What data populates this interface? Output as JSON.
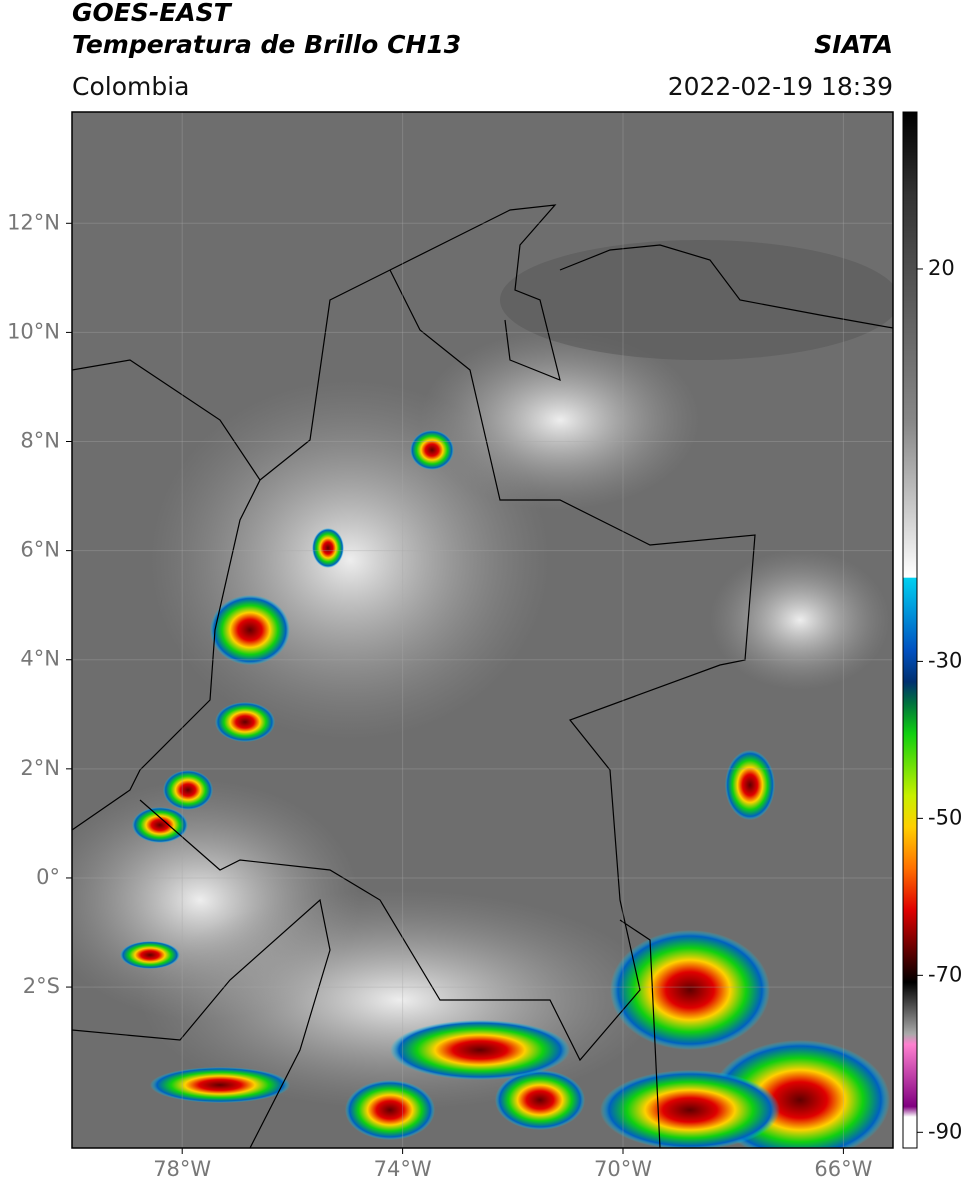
{
  "header": {
    "title": "GOES-EAST",
    "subtitle": "Temperatura de Brillo CH13",
    "source": "SIATA",
    "region": "Colombia",
    "datetime": "2022-02-19 18:39"
  },
  "map": {
    "xlim": [
      -80,
      -65.1
    ],
    "ylim": [
      -4.95,
      14.04
    ],
    "xticks": [
      {
        "value": -78,
        "label": "78°W"
      },
      {
        "value": -74,
        "label": "74°W"
      },
      {
        "value": -70,
        "label": "70°W"
      },
      {
        "value": -66,
        "label": "66°W"
      }
    ],
    "yticks": [
      {
        "value": 12,
        "label": "12°N"
      },
      {
        "value": 10,
        "label": "10°N"
      },
      {
        "value": 8,
        "label": "8°N"
      },
      {
        "value": 6,
        "label": "6°N"
      },
      {
        "value": 4,
        "label": "4°N"
      },
      {
        "value": 2,
        "label": "2°N"
      },
      {
        "value": 0,
        "label": "0°"
      },
      {
        "value": -2,
        "label": "2°S"
      }
    ],
    "grid": true
  },
  "colorbar": {
    "range": [
      -92,
      40
    ],
    "ticks": [
      20,
      -30,
      -50,
      -70,
      -90
    ]
  }
}
